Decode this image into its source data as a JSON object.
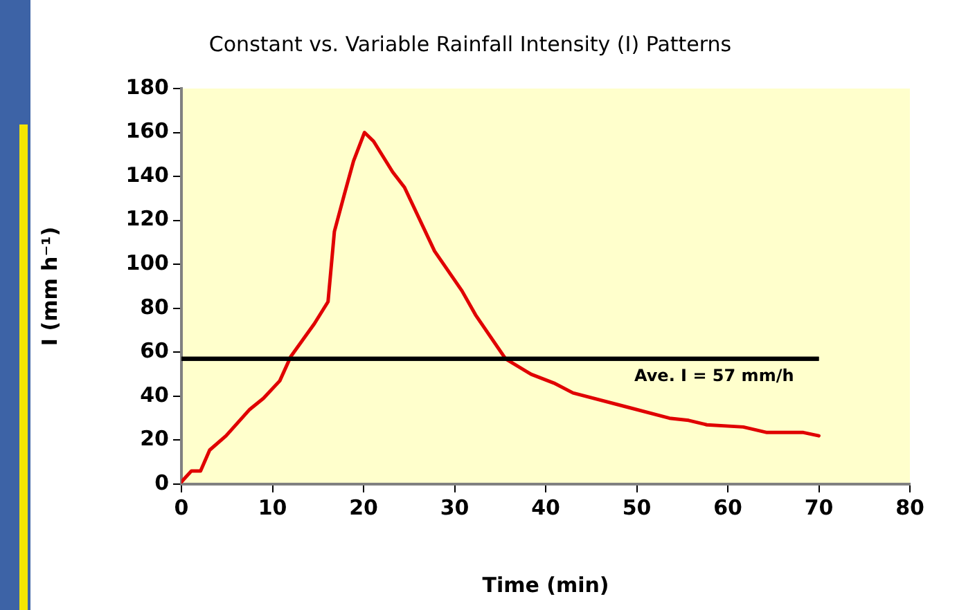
{
  "chart_data": {
    "type": "line",
    "title": "Constant vs. Variable Rainfall Intensity (I) Patterns",
    "xlabel": "Time (min)",
    "ylabel": "I (mm h⁻¹)",
    "x": [
      0,
      1.1,
      2.1,
      3.1,
      4.9,
      7.5,
      9,
      10.8,
      12,
      14.6,
      16.1,
      16.8,
      17.9,
      18.9,
      20.1,
      21.1,
      23.2,
      24.5,
      27.8,
      30.8,
      32.3,
      35.6,
      38.4,
      40.9,
      43,
      49,
      53.6,
      55.7,
      57.7,
      61.7,
      64.3,
      68.3,
      70
    ],
    "series": [
      {
        "color": "#e00000",
        "values": [
          1,
          6,
          6,
          15.5,
          22,
          34,
          39,
          47,
          58,
          73,
          83,
          115,
          132,
          147,
          160,
          156,
          142,
          135,
          106,
          88,
          77,
          57,
          50,
          46,
          41.5,
          35,
          30,
          29,
          27,
          26,
          23.5,
          23.5,
          22
        ]
      }
    ],
    "xlim": [
      0,
      80
    ],
    "xticks": [
      0,
      10,
      20,
      30,
      40,
      50,
      60,
      70,
      80
    ],
    "ylim": [
      0,
      180
    ],
    "yticks": [
      0,
      20,
      40,
      60,
      80,
      100,
      120,
      140,
      160,
      180
    ],
    "ref_lines": [
      {
        "axis": "y",
        "value": 57,
        "label": "Ave. I = 57 mm/h",
        "color": "#000000"
      }
    ],
    "grid": false,
    "legend": false,
    "marker": "none",
    "line_style": "solid"
  }
}
